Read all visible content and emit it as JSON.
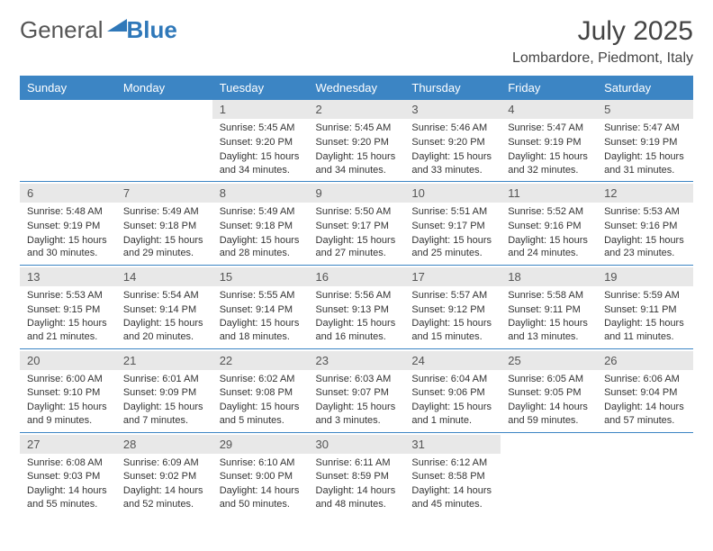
{
  "logo": {
    "general": "General",
    "blue": "Blue"
  },
  "title": "July 2025",
  "location": "Lombardore, Piedmont, Italy",
  "colors": {
    "header_bg": "#3c85c4",
    "header_text": "#ffffff",
    "daynum_bg": "#e8e8e8",
    "border": "#3c85c4",
    "logo_blue": "#2f78b9"
  },
  "weekdays": [
    "Sunday",
    "Monday",
    "Tuesday",
    "Wednesday",
    "Thursday",
    "Friday",
    "Saturday"
  ],
  "weeks": [
    [
      null,
      null,
      {
        "num": "1",
        "sunrise": "Sunrise: 5:45 AM",
        "sunset": "Sunset: 9:20 PM",
        "daylight": "Daylight: 15 hours and 34 minutes."
      },
      {
        "num": "2",
        "sunrise": "Sunrise: 5:45 AM",
        "sunset": "Sunset: 9:20 PM",
        "daylight": "Daylight: 15 hours and 34 minutes."
      },
      {
        "num": "3",
        "sunrise": "Sunrise: 5:46 AM",
        "sunset": "Sunset: 9:20 PM",
        "daylight": "Daylight: 15 hours and 33 minutes."
      },
      {
        "num": "4",
        "sunrise": "Sunrise: 5:47 AM",
        "sunset": "Sunset: 9:19 PM",
        "daylight": "Daylight: 15 hours and 32 minutes."
      },
      {
        "num": "5",
        "sunrise": "Sunrise: 5:47 AM",
        "sunset": "Sunset: 9:19 PM",
        "daylight": "Daylight: 15 hours and 31 minutes."
      }
    ],
    [
      {
        "num": "6",
        "sunrise": "Sunrise: 5:48 AM",
        "sunset": "Sunset: 9:19 PM",
        "daylight": "Daylight: 15 hours and 30 minutes."
      },
      {
        "num": "7",
        "sunrise": "Sunrise: 5:49 AM",
        "sunset": "Sunset: 9:18 PM",
        "daylight": "Daylight: 15 hours and 29 minutes."
      },
      {
        "num": "8",
        "sunrise": "Sunrise: 5:49 AM",
        "sunset": "Sunset: 9:18 PM",
        "daylight": "Daylight: 15 hours and 28 minutes."
      },
      {
        "num": "9",
        "sunrise": "Sunrise: 5:50 AM",
        "sunset": "Sunset: 9:17 PM",
        "daylight": "Daylight: 15 hours and 27 minutes."
      },
      {
        "num": "10",
        "sunrise": "Sunrise: 5:51 AM",
        "sunset": "Sunset: 9:17 PM",
        "daylight": "Daylight: 15 hours and 25 minutes."
      },
      {
        "num": "11",
        "sunrise": "Sunrise: 5:52 AM",
        "sunset": "Sunset: 9:16 PM",
        "daylight": "Daylight: 15 hours and 24 minutes."
      },
      {
        "num": "12",
        "sunrise": "Sunrise: 5:53 AM",
        "sunset": "Sunset: 9:16 PM",
        "daylight": "Daylight: 15 hours and 23 minutes."
      }
    ],
    [
      {
        "num": "13",
        "sunrise": "Sunrise: 5:53 AM",
        "sunset": "Sunset: 9:15 PM",
        "daylight": "Daylight: 15 hours and 21 minutes."
      },
      {
        "num": "14",
        "sunrise": "Sunrise: 5:54 AM",
        "sunset": "Sunset: 9:14 PM",
        "daylight": "Daylight: 15 hours and 20 minutes."
      },
      {
        "num": "15",
        "sunrise": "Sunrise: 5:55 AM",
        "sunset": "Sunset: 9:14 PM",
        "daylight": "Daylight: 15 hours and 18 minutes."
      },
      {
        "num": "16",
        "sunrise": "Sunrise: 5:56 AM",
        "sunset": "Sunset: 9:13 PM",
        "daylight": "Daylight: 15 hours and 16 minutes."
      },
      {
        "num": "17",
        "sunrise": "Sunrise: 5:57 AM",
        "sunset": "Sunset: 9:12 PM",
        "daylight": "Daylight: 15 hours and 15 minutes."
      },
      {
        "num": "18",
        "sunrise": "Sunrise: 5:58 AM",
        "sunset": "Sunset: 9:11 PM",
        "daylight": "Daylight: 15 hours and 13 minutes."
      },
      {
        "num": "19",
        "sunrise": "Sunrise: 5:59 AM",
        "sunset": "Sunset: 9:11 PM",
        "daylight": "Daylight: 15 hours and 11 minutes."
      }
    ],
    [
      {
        "num": "20",
        "sunrise": "Sunrise: 6:00 AM",
        "sunset": "Sunset: 9:10 PM",
        "daylight": "Daylight: 15 hours and 9 minutes."
      },
      {
        "num": "21",
        "sunrise": "Sunrise: 6:01 AM",
        "sunset": "Sunset: 9:09 PM",
        "daylight": "Daylight: 15 hours and 7 minutes."
      },
      {
        "num": "22",
        "sunrise": "Sunrise: 6:02 AM",
        "sunset": "Sunset: 9:08 PM",
        "daylight": "Daylight: 15 hours and 5 minutes."
      },
      {
        "num": "23",
        "sunrise": "Sunrise: 6:03 AM",
        "sunset": "Sunset: 9:07 PM",
        "daylight": "Daylight: 15 hours and 3 minutes."
      },
      {
        "num": "24",
        "sunrise": "Sunrise: 6:04 AM",
        "sunset": "Sunset: 9:06 PM",
        "daylight": "Daylight: 15 hours and 1 minute."
      },
      {
        "num": "25",
        "sunrise": "Sunrise: 6:05 AM",
        "sunset": "Sunset: 9:05 PM",
        "daylight": "Daylight: 14 hours and 59 minutes."
      },
      {
        "num": "26",
        "sunrise": "Sunrise: 6:06 AM",
        "sunset": "Sunset: 9:04 PM",
        "daylight": "Daylight: 14 hours and 57 minutes."
      }
    ],
    [
      {
        "num": "27",
        "sunrise": "Sunrise: 6:08 AM",
        "sunset": "Sunset: 9:03 PM",
        "daylight": "Daylight: 14 hours and 55 minutes."
      },
      {
        "num": "28",
        "sunrise": "Sunrise: 6:09 AM",
        "sunset": "Sunset: 9:02 PM",
        "daylight": "Daylight: 14 hours and 52 minutes."
      },
      {
        "num": "29",
        "sunrise": "Sunrise: 6:10 AM",
        "sunset": "Sunset: 9:00 PM",
        "daylight": "Daylight: 14 hours and 50 minutes."
      },
      {
        "num": "30",
        "sunrise": "Sunrise: 6:11 AM",
        "sunset": "Sunset: 8:59 PM",
        "daylight": "Daylight: 14 hours and 48 minutes."
      },
      {
        "num": "31",
        "sunrise": "Sunrise: 6:12 AM",
        "sunset": "Sunset: 8:58 PM",
        "daylight": "Daylight: 14 hours and 45 minutes."
      },
      null,
      null
    ]
  ]
}
